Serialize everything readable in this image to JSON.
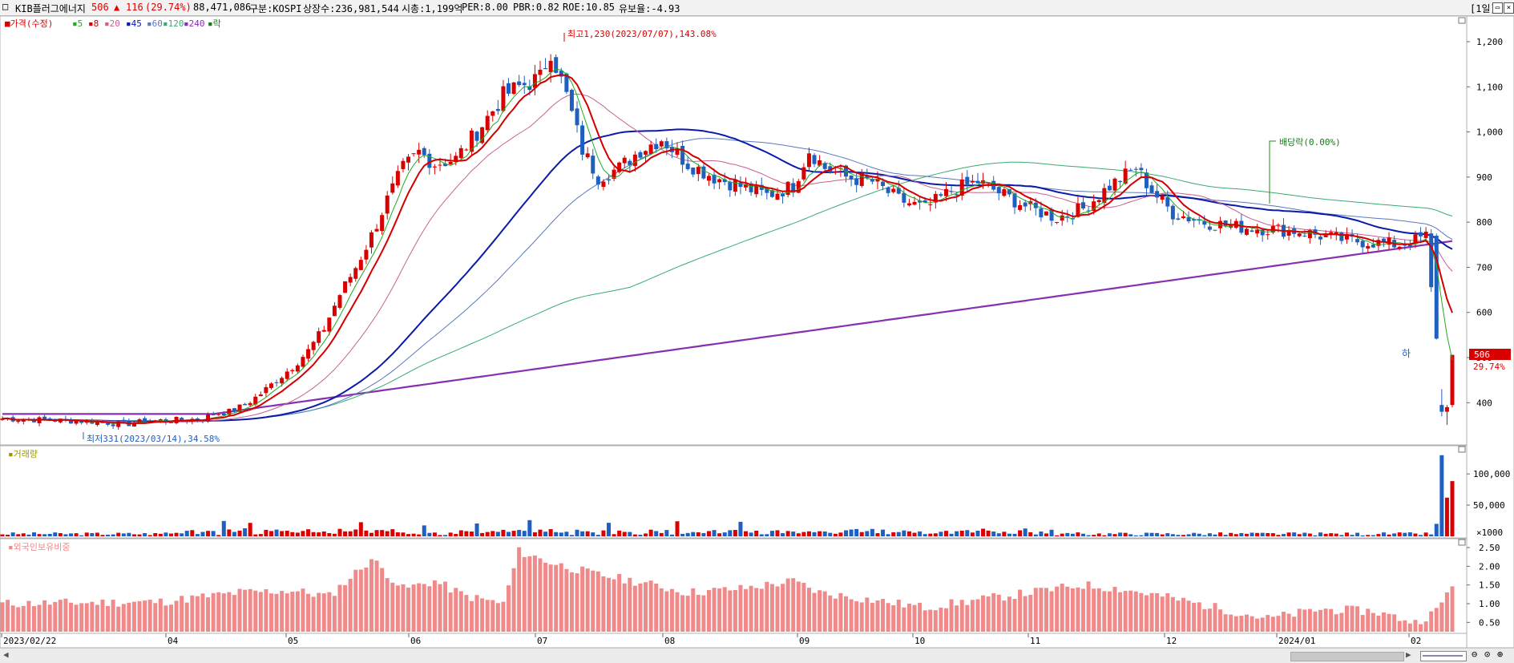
{
  "header": {
    "stock_name": "KIB플러그에너지",
    "price": "506",
    "change_arrow": "▲",
    "change": "116",
    "change_pct": "(29.74%)",
    "volume": "88,471,086",
    "market": "구분:KOSPI",
    "shares": "상장수:236,981,544",
    "mcap": "시총:1,199억",
    "per": "PER:8.00",
    "pbr": "PBR:0.82",
    "roe": "ROE:10.85",
    "float": "유보율:-4.93",
    "period_button": "[1일]"
  },
  "legend": {
    "price": "가격(수정)",
    "ma5": "5",
    "ma8": "8",
    "ma20": "20",
    "ma45": "45",
    "ma60": "60",
    "ma120": "120",
    "ma240": "240",
    "ex": "락"
  },
  "colors": {
    "up": "#d90000",
    "down": "#1f5fbf",
    "ma5": "#22aa22",
    "ma8": "#d40000",
    "ma20": "#c86090",
    "ma45": "#0a1aaa",
    "ma60": "#5a78c0",
    "ma120": "#3aaa70",
    "ma240": "#8830b0",
    "foreign": "#f08a8a"
  },
  "chart_data": [
    {
      "type": "candlestick",
      "title": "KIB플러그에너지",
      "y_ticks": [
        400,
        500,
        600,
        700,
        800,
        900,
        1000,
        1100,
        1200
      ],
      "ylim": [
        310,
        1255
      ],
      "x_ticks": [
        "2023/02/22",
        "04",
        "05",
        "06",
        "07",
        "08",
        "09",
        "10",
        "11",
        "12",
        "2024/01",
        "02"
      ],
      "annotations": {
        "high": "최고1,230(2023/07/07),143.08%",
        "low": "최저331(2023/03/14),34.58%",
        "ex_dividend": "배당락(0.00%)",
        "limit_down": "하",
        "last_price": "506",
        "last_pct": "29.74%"
      },
      "series_path": [
        [
          0,
          365
        ],
        [
          18,
          358
        ],
        [
          23,
          352
        ],
        [
          28,
          360
        ],
        [
          34,
          362
        ],
        [
          38,
          365
        ],
        [
          40,
          375
        ],
        [
          43,
          380
        ],
        [
          46,
          395
        ],
        [
          49,
          420
        ],
        [
          52,
          450
        ],
        [
          55,
          480
        ],
        [
          58,
          515
        ],
        [
          61,
          565
        ],
        [
          64,
          640
        ],
        [
          67,
          700
        ],
        [
          70,
          770
        ],
        [
          73,
          850
        ],
        [
          76,
          920
        ],
        [
          79,
          955
        ],
        [
          82,
          930
        ],
        [
          86,
          940
        ],
        [
          90,
          1000
        ],
        [
          95,
          1080
        ],
        [
          98,
          1100
        ],
        [
          102,
          1120
        ],
        [
          104,
          1180
        ],
        [
          107,
          1080
        ],
        [
          110,
          960
        ],
        [
          113,
          900
        ],
        [
          117,
          920
        ],
        [
          121,
          960
        ],
        [
          125,
          985
        ],
        [
          130,
          930
        ],
        [
          135,
          900
        ],
        [
          140,
          880
        ],
        [
          145,
          860
        ],
        [
          150,
          880
        ],
        [
          153,
          960
        ],
        [
          156,
          920
        ],
        [
          160,
          900
        ],
        [
          165,
          890
        ],
        [
          170,
          850
        ],
        [
          175,
          830
        ],
        [
          180,
          870
        ],
        [
          185,
          890
        ],
        [
          190,
          860
        ],
        [
          195,
          830
        ],
        [
          200,
          810
        ],
        [
          205,
          830
        ],
        [
          210,
          880
        ],
        [
          215,
          920
        ],
        [
          218,
          870
        ],
        [
          222,
          820
        ],
        [
          228,
          800
        ],
        [
          234,
          790
        ],
        [
          240,
          785
        ],
        [
          246,
          780
        ],
        [
          250,
          770
        ],
        [
          255,
          760
        ],
        [
          260,
          755
        ],
        [
          265,
          750
        ],
        [
          268,
          760
        ],
        [
          270,
          770
        ],
        [
          272,
          542
        ],
        [
          273,
          380
        ],
        [
          274,
          390
        ],
        [
          275,
          506
        ]
      ]
    },
    {
      "type": "bar",
      "title": "거래량",
      "y_ticks": [
        50000,
        100000
      ],
      "y_tick_labels": [
        "50,000",
        "100,000"
      ],
      "unit_label": "×1000",
      "last_values": [
        130000,
        62000,
        88471
      ]
    },
    {
      "type": "bar",
      "title": "외국인보유비중",
      "y_ticks": [
        0.5,
        1.0,
        1.5,
        2.0,
        2.5
      ],
      "y_tick_labels": [
        "0.50",
        "1.00",
        "1.50",
        "2.00",
        "2.50"
      ],
      "ylim": [
        0.25,
        2.65
      ]
    }
  ]
}
